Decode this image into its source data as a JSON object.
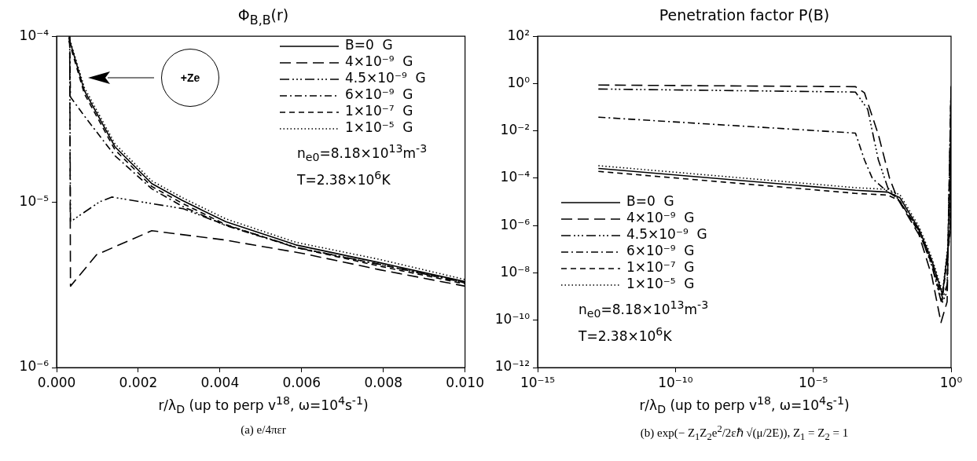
{
  "chart_data": [
    {
      "type": "line",
      "title": "Φ$_{B,B}$(r)",
      "xlabel": "r/λ$_{D}$ (up to perp v$^{18}$, ω=10$^{4}$s$^{-1}$)",
      "log": "y",
      "legend": "top right",
      "marker": "none",
      "xlim": [
        0,
        0.01
      ],
      "xticks": [
        {
          "value": 0,
          "label": "0.000"
        },
        {
          "value": 0.002,
          "label": "0.002"
        },
        {
          "value": 0.004,
          "label": "0.004"
        },
        {
          "value": 0.006,
          "label": "0.006"
        },
        {
          "value": 0.008,
          "label": "0.008"
        },
        {
          "value": 0.01,
          "label": "0.010"
        }
      ],
      "ylim": [
        1e-06,
        0.0001
      ],
      "yticks": [
        {
          "value": 1e-06,
          "label": "10⁻⁶"
        },
        {
          "value": 1e-05,
          "label": "10⁻⁵"
        },
        {
          "value": 0.0001,
          "label": "10⁻⁴"
        }
      ],
      "series": [
        {
          "name": "B=0  G",
          "color": "#000000",
          "line_style": "solid",
          "x": [
            0.0003,
            0.00068,
            0.00143,
            0.00233,
            0.00308,
            0.00414,
            0.00586,
            0.0079,
            0.01
          ],
          "values": [
            9.8e-05,
            4.7e-05,
            2.15e-05,
            1.29e-05,
            1.02e-05,
            7.6e-06,
            5.5e-06,
            4.3e-06,
            3.3e-06
          ]
        },
        {
          "name": "4×10⁻⁹  G",
          "color": "#000000",
          "line_style": "longdash",
          "x": [
            0.00032,
            0.00034,
            0.00098,
            0.00233,
            0.0041,
            0.006,
            0.0079,
            0.01
          ],
          "values": [
            0.0001,
            3.1e-06,
            4.8e-06,
            6.7e-06,
            5.9e-06,
            4.9e-06,
            3.9e-06,
            3.1e-06
          ]
        },
        {
          "name": "4.5×10⁻⁹  G",
          "color": "#000000",
          "line_style": "dashdotdotdot",
          "x": [
            0.00032,
            0.00034,
            0.00105,
            0.00135,
            0.0031,
            0.0041,
            0.0059,
            0.0079,
            0.01
          ],
          "values": [
            0.0001,
            7.6e-06,
            1e-05,
            1.07e-05,
            9.1e-06,
            7.3e-06,
            5.3e-06,
            4.2e-06,
            3.25e-06
          ]
        },
        {
          "name": "6×10⁻⁹  G",
          "color": "#000000",
          "line_style": "dashdot",
          "x": [
            0.00032,
            0.00034,
            0.00068,
            0.00143,
            0.00233,
            0.00308,
            0.00414,
            0.00586,
            0.0079,
            0.01
          ],
          "values": [
            0.0001,
            4.3e-05,
            3.3e-05,
            1.9e-05,
            1.2e-05,
            9.4e-06,
            7.2e-06,
            5.3e-06,
            4.2e-06,
            3.25e-06
          ]
        },
        {
          "name": "1×10⁻⁷  G",
          "color": "#000000",
          "line_style": "dashed",
          "x": [
            0.0003,
            0.00068,
            0.00143,
            0.00233,
            0.00308,
            0.00414,
            0.00586,
            0.0079,
            0.01
          ],
          "values": [
            9.4e-05,
            4.5e-05,
            2.06e-05,
            1.24e-05,
            9.8e-06,
            7.3e-06,
            5.3e-06,
            4.1e-06,
            3.2e-06
          ]
        },
        {
          "name": "1×10⁻⁵  G",
          "color": "#000000",
          "line_style": "dotted",
          "x": [
            0.0003,
            0.00068,
            0.00143,
            0.00233,
            0.00308,
            0.00414,
            0.00586,
            0.0079,
            0.01
          ],
          "values": [
            0.0001,
            4.9e-05,
            2.24e-05,
            1.34e-05,
            1.06e-05,
            7.9e-06,
            5.7e-06,
            4.5e-06,
            3.4e-06
          ]
        }
      ],
      "annotations": [
        "+Ze",
        "n$_{e0}$=8.18×10$^{13}$m$^{-3}$",
        "T=2.38×10$^{6}$K",
        "(a) e/4πεr"
      ]
    },
    {
      "type": "line",
      "title": "Penetration factor P(B)",
      "xlabel": "r/λ$_{D}$ (up to perp v$^{18}$, ω=10$^{4}$s$^{-1}$)",
      "log": "xy",
      "legend": "bottom left",
      "marker": "none",
      "xlim": [
        1e-15,
        1
      ],
      "xticks": [
        {
          "value": 1e-15,
          "label": "10⁻¹⁵"
        },
        {
          "value": 1e-10,
          "label": "10⁻¹⁰"
        },
        {
          "value": 1e-05,
          "label": "10⁻⁵"
        },
        {
          "value": 1,
          "label": "10⁰"
        }
      ],
      "ylim": [
        1e-12,
        100
      ],
      "yticks": [
        {
          "value": 1e-12,
          "label": "10⁻¹²"
        },
        {
          "value": 1e-10,
          "label": "10⁻¹⁰"
        },
        {
          "value": 1e-08,
          "label": "10⁻⁸"
        },
        {
          "value": 1e-06,
          "label": "10⁻⁶"
        },
        {
          "value": 0.0001,
          "label": "10⁻⁴"
        },
        {
          "value": 0.01,
          "label": "10⁻²"
        },
        {
          "value": 1,
          "label": "10⁰"
        },
        {
          "value": 100,
          "label": "10²"
        }
      ],
      "series": [
        {
          "name": "B=0  G",
          "color": "#000000",
          "line_style": "solid",
          "x": [
            1.6e-13,
            0.00034,
            0.005,
            0.014,
            0.069,
            0.2,
            0.49,
            0.93,
            1
          ],
          "values": [
            0.00026,
            3.1e-05,
            2.6e-05,
            1.5e-05,
            7e-07,
            3.4e-08,
            1.2e-09,
            7e-07,
            0.7
          ]
        },
        {
          "name": "4×10⁻⁹  G",
          "color": "#000000",
          "line_style": "longdash",
          "x": [
            1.6e-13,
            0.00034,
            0.00072,
            0.0023,
            0.0059,
            0.011,
            0.069,
            0.2,
            0.43,
            0.72,
            1
          ],
          "values": [
            0.87,
            0.74,
            0.41,
            0.007,
            9.8e-05,
            1.5e-05,
            4e-07,
            7.4e-09,
            8e-11,
            6e-10,
            0.7
          ]
        },
        {
          "name": "4.5×10⁻⁹  G",
          "color": "#000000",
          "line_style": "dashdotdotdot",
          "x": [
            1.6e-13,
            0.00034,
            0.00095,
            0.0023,
            0.0051,
            0.011,
            0.069,
            0.2,
            0.46,
            0.72,
            1
          ],
          "values": [
            0.59,
            0.44,
            0.081,
            0.0006,
            3.9e-05,
            1.5e-05,
            6e-07,
            2e-08,
            5e-10,
            1.6e-09,
            0.7
          ]
        },
        {
          "name": "6×10⁻⁹  G",
          "color": "#000000",
          "line_style": "dashdot",
          "x": [
            1.6e-13,
            0.00034,
            0.00072,
            0.0014,
            0.004,
            0.011,
            0.069,
            0.2,
            0.46,
            0.72,
            1
          ],
          "values": [
            0.038,
            0.0081,
            0.0006,
            9.8e-05,
            3.3e-05,
            1.5e-05,
            6.3e-07,
            2.5e-08,
            6.3e-10,
            3.2e-09,
            0.7
          ]
        },
        {
          "name": "1×10⁻⁷  G",
          "color": "#000000",
          "line_style": "dashed",
          "x": [
            1.6e-13,
            0.00034,
            0.005,
            0.014,
            0.069,
            0.2,
            0.49,
            0.93,
            1
          ],
          "values": [
            0.000195,
            2.3e-05,
            1.95e-05,
            1.1e-05,
            5e-07,
            2.5e-08,
            9e-10,
            5e-07,
            0.5
          ]
        },
        {
          "name": "1×10⁻⁵  G",
          "color": "#000000",
          "line_style": "dotted",
          "x": [
            1.6e-13,
            0.00034,
            0.005,
            0.014,
            0.069,
            0.2,
            0.49,
            0.93,
            1
          ],
          "values": [
            0.00034,
            4e-05,
            3.4e-05,
            2e-05,
            9e-07,
            4.4e-08,
            1.6e-09,
            9e-07,
            0.9
          ]
        }
      ],
      "annotations": [
        "n$_{e0}$=8.18×10$^{13}$m$^{-3}$",
        "T=2.38×10$^{6}$K",
        "(b) exp(− Z$_{1}$Z$_{2}$e$^{2}$/2εℏ √(μ/2E)), Z$_{1}$ = Z$_{2}$ = 1"
      ]
    }
  ]
}
